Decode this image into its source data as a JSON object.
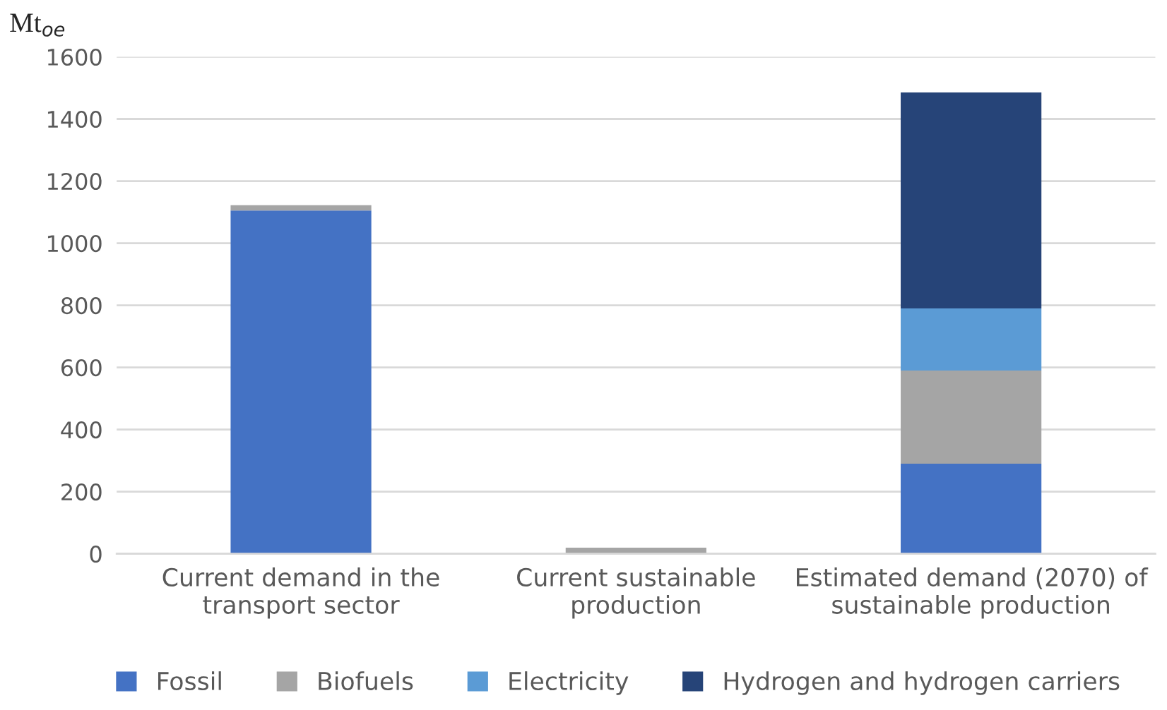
{
  "chart_data": {
    "type": "bar",
    "stacked": true,
    "ylabel": "Mt$_{oe}$",
    "categories": [
      "Current demand in the transport sector",
      "Current sustainable production",
      "Estimated demand (2070) of sustainable production"
    ],
    "series": [
      {
        "name": "Fossil",
        "color": "#4472c4",
        "values": [
          1105,
          0,
          290
        ]
      },
      {
        "name": "Biofuels",
        "color": "#a5a5a5",
        "values": [
          17,
          20,
          300
        ]
      },
      {
        "name": "Electricity",
        "color": "#5b9bd5",
        "values": [
          0,
          0,
          200
        ]
      },
      {
        "name": "Hydrogen and hydrogen carriers",
        "color": "#264478",
        "values": [
          0,
          0,
          695
        ]
      }
    ],
    "ylim": [
      0,
      1600
    ],
    "yticks": [
      0,
      200,
      400,
      600,
      800,
      1000,
      1200,
      1400,
      1600
    ],
    "grid": "y",
    "legend": "bottom"
  }
}
